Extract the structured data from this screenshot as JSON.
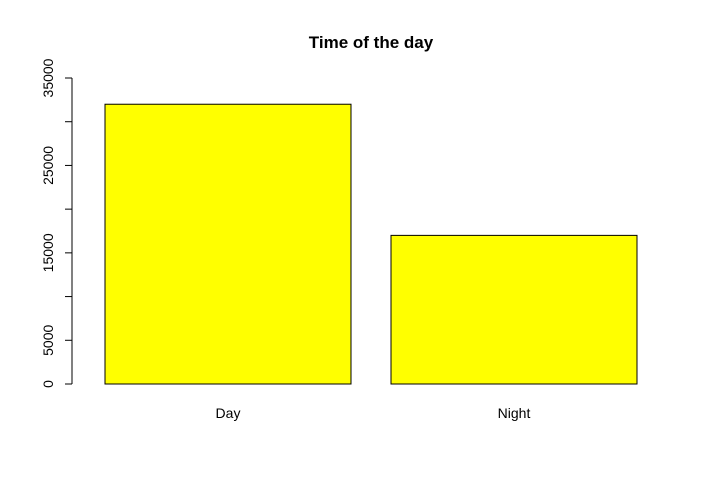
{
  "chart_data": {
    "type": "bar",
    "title": "Time of the day",
    "xlabel": "",
    "ylabel": "",
    "categories": [
      "Day",
      "Night"
    ],
    "values": [
      32000,
      17000
    ],
    "ylim": [
      0,
      35000
    ],
    "yticks": [
      0,
      5000,
      10000,
      15000,
      20000,
      25000,
      30000,
      35000
    ],
    "ytick_labels": [
      "0",
      "5000",
      "",
      "15000",
      "",
      "25000",
      "",
      "35000"
    ],
    "bar_color": "#ffff00",
    "grid": false,
    "legend": "none"
  }
}
